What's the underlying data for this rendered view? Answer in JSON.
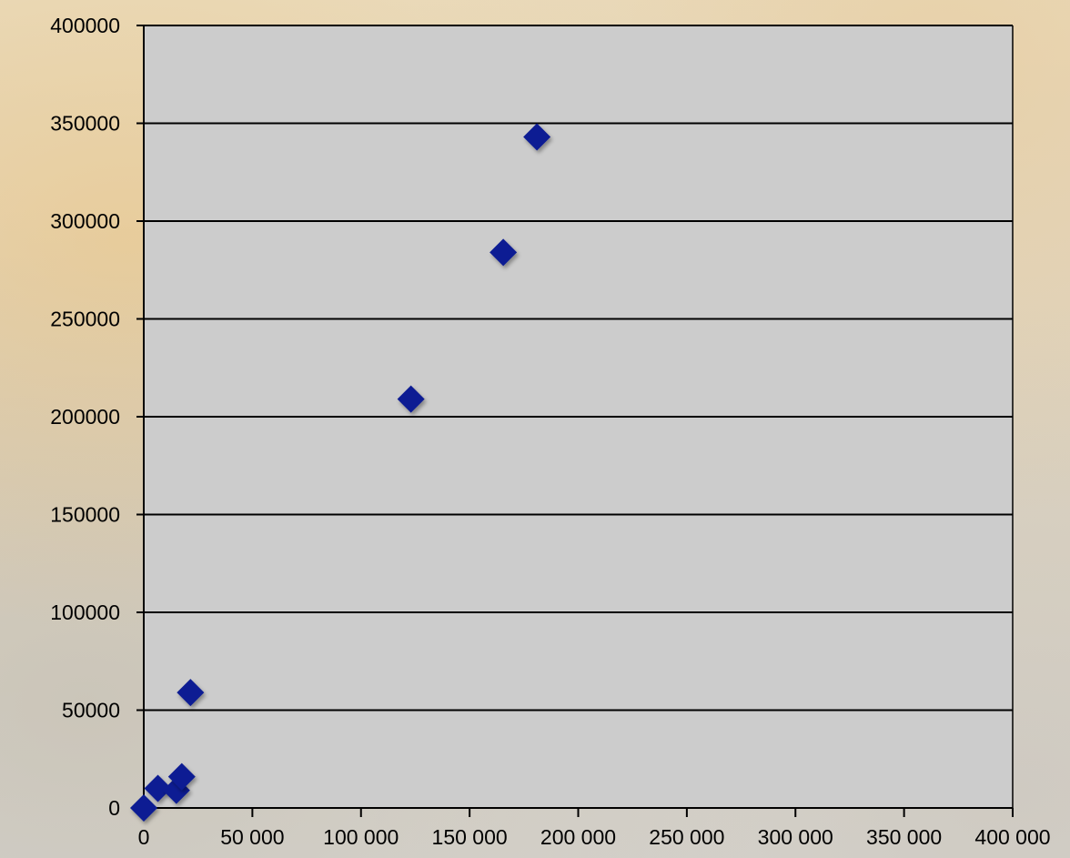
{
  "chart_data": {
    "type": "scatter",
    "title": "",
    "xlabel": "",
    "ylabel": "",
    "xlim": [
      0,
      400000
    ],
    "ylim": [
      0,
      400000
    ],
    "x_ticks": [
      0,
      50000,
      100000,
      150000,
      200000,
      250000,
      300000,
      350000,
      400000
    ],
    "x_tick_labels": [
      "0",
      "50 000",
      "100 000",
      "150 000",
      "200 000",
      "250 000",
      "300 000",
      "350 000",
      "400 000"
    ],
    "y_ticks": [
      0,
      50000,
      100000,
      150000,
      200000,
      250000,
      300000,
      350000,
      400000
    ],
    "y_tick_labels": [
      "0",
      "50000",
      "100000",
      "150000",
      "200000",
      "250000",
      "300000",
      "350000",
      "400000"
    ],
    "grid": "horizontal",
    "legend": "none",
    "series": [
      {
        "marker": "diamond",
        "color": "#0d1f93",
        "points": [
          {
            "x": 0,
            "y": 0
          },
          {
            "x": 6500,
            "y": 10000
          },
          {
            "x": 15000,
            "y": 9000
          },
          {
            "x": 17500,
            "y": 16000
          },
          {
            "x": 21500,
            "y": 59000
          },
          {
            "x": 123000,
            "y": 209000
          },
          {
            "x": 165500,
            "y": 284000
          },
          {
            "x": 181000,
            "y": 343000
          }
        ]
      }
    ],
    "colors": {
      "plot_background": "#cccccc",
      "gridline": "#000000",
      "axis": "#000000",
      "marker": "#0d1f93"
    }
  }
}
